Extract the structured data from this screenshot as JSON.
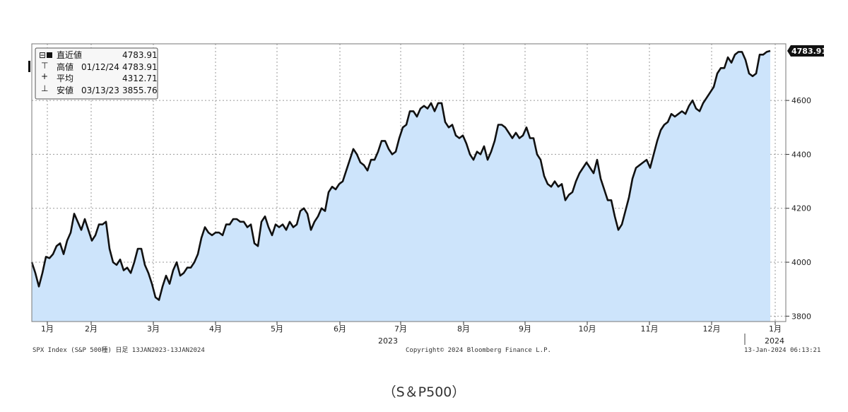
{
  "chart_data": {
    "type": "area",
    "series": [
      {
        "values": [
          4000,
          3960,
          3910,
          3960,
          4020,
          4015,
          4030,
          4060,
          4070,
          4030,
          4080,
          4110,
          4180,
          4150,
          4120,
          4160,
          4120,
          4080,
          4100,
          4140,
          4140,
          4150,
          4050,
          4000,
          3990,
          4010,
          3970,
          3980,
          3960,
          4000,
          4050,
          4050,
          3990,
          3960,
          3920,
          3870,
          3860,
          3910,
          3950,
          3920,
          3970,
          4000,
          3950,
          3960,
          3980,
          3980,
          4000,
          4030,
          4090,
          4130,
          4110,
          4100,
          4110,
          4110,
          4100,
          4140,
          4140,
          4160,
          4160,
          4150,
          4150,
          4130,
          4140,
          4070,
          4060,
          4150,
          4170,
          4130,
          4100,
          4140,
          4130,
          4140,
          4120,
          4150,
          4130,
          4140,
          4190,
          4200,
          4180,
          4120,
          4150,
          4170,
          4200,
          4190,
          4260,
          4280,
          4270,
          4290,
          4300,
          4340,
          4380,
          4420,
          4400,
          4370,
          4360,
          4340,
          4380,
          4380,
          4410,
          4450,
          4450,
          4420,
          4400,
          4410,
          4460,
          4500,
          4510,
          4560,
          4560,
          4540,
          4570,
          4580,
          4570,
          4590,
          4560,
          4590,
          4590,
          4520,
          4500,
          4510,
          4470,
          4460,
          4470,
          4440,
          4400,
          4380,
          4410,
          4400,
          4430,
          4380,
          4410,
          4450,
          4510,
          4510,
          4500,
          4480,
          4460,
          4480,
          4460,
          4470,
          4500,
          4460,
          4460,
          4400,
          4380,
          4320,
          4290,
          4280,
          4300,
          4280,
          4290,
          4230,
          4250,
          4260,
          4300,
          4330,
          4350,
          4370,
          4350,
          4330,
          4380,
          4310,
          4270,
          4230,
          4230,
          4170,
          4120,
          4140,
          4190,
          4240,
          4310,
          4350,
          4360,
          4370,
          4380,
          4350,
          4400,
          4450,
          4490,
          4510,
          4520,
          4550,
          4540,
          4550,
          4560,
          4550,
          4580,
          4600,
          4570,
          4560,
          4590,
          4610,
          4630,
          4650,
          4700,
          4720,
          4720,
          4760,
          4740,
          4770,
          4780,
          4780,
          4750,
          4700,
          4690,
          4700,
          4770,
          4770,
          4780,
          4783.91
        ]
      }
    ],
    "start_date": "2023-01-13",
    "end_date": "2024-01-12",
    "x_ticks": [
      "1月",
      "2月",
      "3月",
      "4月",
      "5月",
      "6月",
      "7月",
      "8月",
      "9月",
      "10月",
      "11月",
      "12月",
      "1月"
    ],
    "year_labels": [
      "2023",
      "2024"
    ],
    "ylim": [
      3780,
      4810
    ],
    "y_ticks": [
      3800,
      4000,
      4200,
      4400,
      4600
    ],
    "last_value_label": "4783.91",
    "grid": true,
    "legend": {
      "placement": "top-left",
      "rows": [
        {
          "label": "直近値",
          "date": "",
          "value": "4783.91"
        },
        {
          "label": "高値",
          "date": "01/12/24",
          "value": "4783.91"
        },
        {
          "label": "平均",
          "date": "",
          "value": "4312.71"
        },
        {
          "label": "安値",
          "date": "03/13/23",
          "value": "3855.76"
        }
      ]
    },
    "colors": {
      "line": "#111111",
      "fill": "#cde4fb",
      "grid": "#9a9a9a"
    }
  },
  "footer": {
    "left": "SPX Index (S&P 500種)  日足 13JAN2023-13JAN2024",
    "center": "Copyright© 2024 Bloomberg Finance L.P.",
    "right": "13-Jan-2024 06:13:21"
  },
  "caption": "（S＆P500）"
}
